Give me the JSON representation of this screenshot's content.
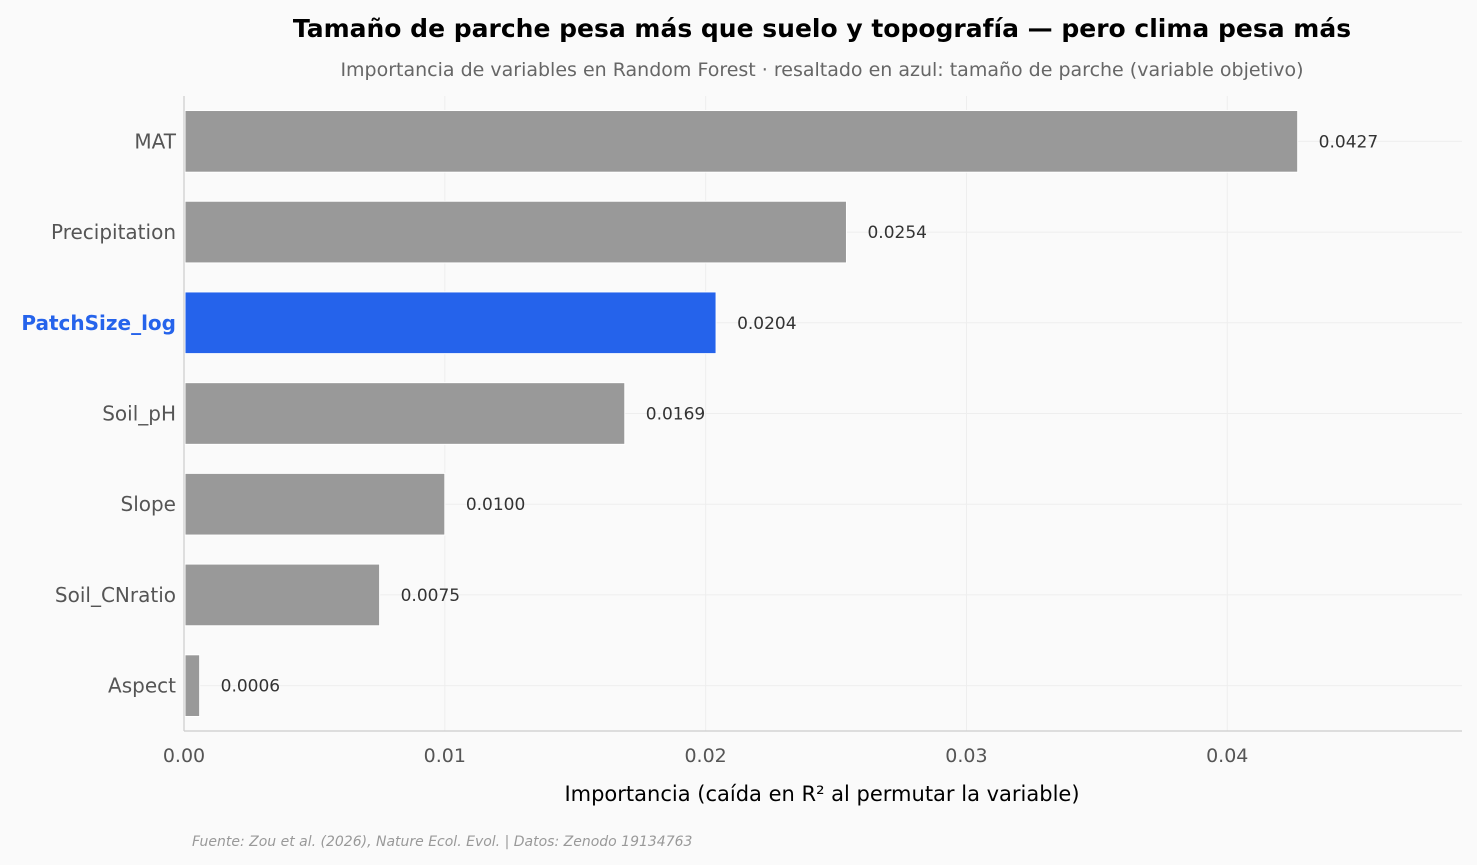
{
  "chart_data": {
    "type": "bar",
    "orientation": "horizontal",
    "title": "Tamaño de parche pesa más que suelo y topografía — pero clima pesa más",
    "subtitle": "Importancia de variables en Random Forest · resaltado en azul: tamaño de parche (variable objetivo)",
    "xlabel": "Importancia (caída en R² al permutar la variable)",
    "ylabel": "",
    "categories": [
      "MAT",
      "Precipitation",
      "PatchSize_log",
      "Soil_pH",
      "Slope",
      "Soil_CNratio",
      "Aspect"
    ],
    "values": [
      0.0427,
      0.0254,
      0.0204,
      0.0169,
      0.01,
      0.0075,
      0.0006
    ],
    "value_labels": [
      "0.0427",
      "0.0254",
      "0.0204",
      "0.0169",
      "0.0100",
      "0.0075",
      "0.0006"
    ],
    "highlight": "PatchSize_log",
    "xlim": [
      0,
      0.049
    ],
    "xticks": [
      0,
      0.01,
      0.02,
      0.03,
      0.04
    ],
    "xtick_labels": [
      "0.00",
      "0.01",
      "0.02",
      "0.03",
      "0.04"
    ],
    "grid": true,
    "colors": {
      "default_bar": "#999999",
      "highlight_bar": "#2563eb",
      "background": "#fafafa"
    },
    "source": "Fuente: Zou et al. (2026), Nature Ecol. Evol. | Datos: Zenodo 19134763"
  }
}
